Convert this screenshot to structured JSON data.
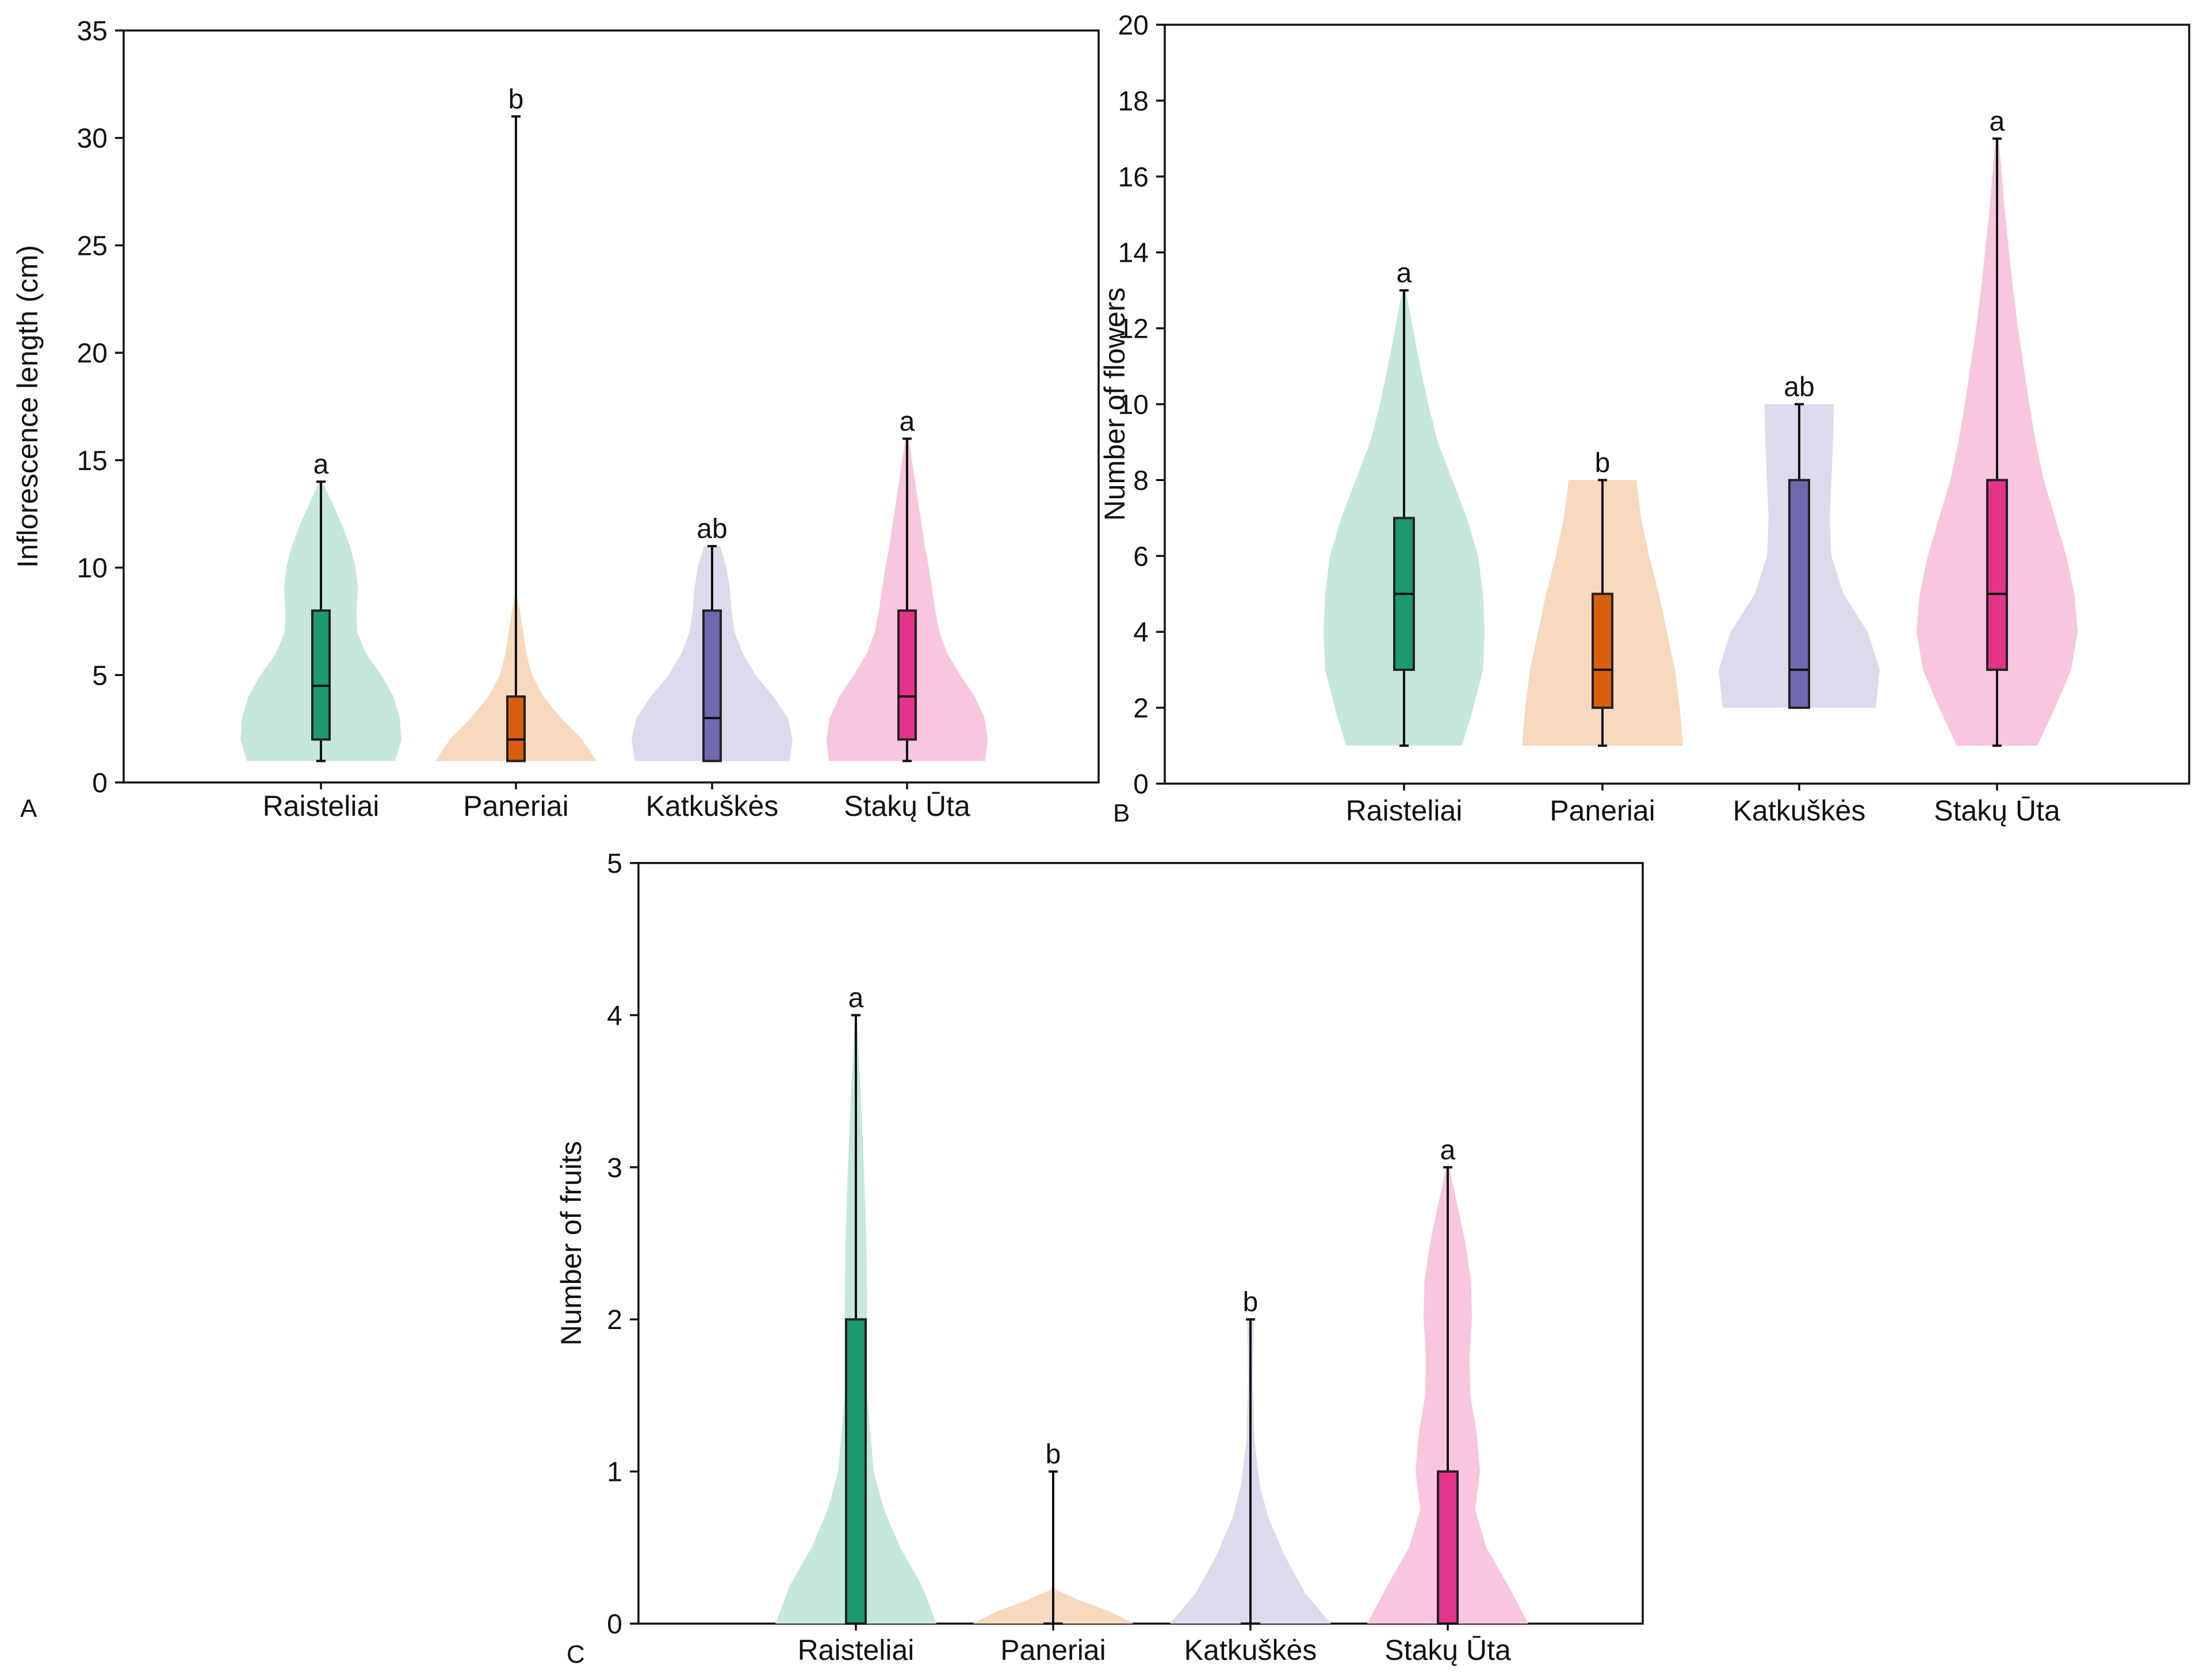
{
  "figure": {
    "categories": [
      "Raisteliai",
      "Paneriai",
      "Katkuškės",
      "Stakų Ūta"
    ],
    "colors": {
      "box": [
        "#1b9a72",
        "#d85f10",
        "#6f6ab0",
        "#e3348a"
      ],
      "violin": [
        "#c6e8db",
        "#f6d9bf",
        "#dcdaec",
        "#f8c6de"
      ]
    }
  },
  "chart_data": [
    {
      "panel": "A",
      "type": "violin",
      "ylabel": "Inflorescence length (cm)",
      "ylim": [
        0,
        35
      ],
      "yticks": [
        0,
        5,
        10,
        15,
        20,
        25,
        30,
        35
      ],
      "series": [
        {
          "name": "Raisteliai",
          "min": 1,
          "q1": 2,
          "median": 4.5,
          "q3": 8,
          "max": 14,
          "letter": "a",
          "density": [
            [
              1,
              0.92
            ],
            [
              2,
              1.0
            ],
            [
              3,
              0.98
            ],
            [
              4,
              0.9
            ],
            [
              5,
              0.75
            ],
            [
              6,
              0.56
            ],
            [
              7,
              0.45
            ],
            [
              8,
              0.44
            ],
            [
              9,
              0.46
            ],
            [
              10,
              0.43
            ],
            [
              11,
              0.36
            ],
            [
              12,
              0.26
            ],
            [
              13,
              0.14
            ],
            [
              14,
              0.02
            ]
          ]
        },
        {
          "name": "Paneriai",
          "min": 1,
          "q1": 1,
          "median": 2,
          "q3": 4,
          "max": 31,
          "letter": "b",
          "density": [
            [
              1,
              1.0
            ],
            [
              2,
              0.82
            ],
            [
              3,
              0.56
            ],
            [
              4,
              0.34
            ],
            [
              5,
              0.2
            ],
            [
              6,
              0.13
            ],
            [
              7,
              0.09
            ],
            [
              8,
              0.05
            ],
            [
              9,
              0.0
            ]
          ]
        },
        {
          "name": "Katkuškės",
          "min": 1,
          "q1": 1,
          "median": 3,
          "q3": 8,
          "max": 11,
          "letter": "ab",
          "density": [
            [
              1,
              0.96
            ],
            [
              2,
              1.0
            ],
            [
              3,
              0.94
            ],
            [
              4,
              0.76
            ],
            [
              5,
              0.54
            ],
            [
              6,
              0.38
            ],
            [
              7,
              0.28
            ],
            [
              8,
              0.24
            ],
            [
              9,
              0.22
            ],
            [
              10,
              0.18
            ],
            [
              11,
              0.1
            ]
          ]
        },
        {
          "name": "Stakų Ūta",
          "min": 1,
          "q1": 2,
          "median": 4,
          "q3": 8,
          "max": 16,
          "letter": "a",
          "density": [
            [
              1,
              0.97
            ],
            [
              2,
              1.0
            ],
            [
              3,
              0.96
            ],
            [
              4,
              0.84
            ],
            [
              5,
              0.66
            ],
            [
              6,
              0.5
            ],
            [
              7,
              0.4
            ],
            [
              8,
              0.35
            ],
            [
              9,
              0.31
            ],
            [
              10,
              0.27
            ],
            [
              11,
              0.22
            ],
            [
              12,
              0.18
            ],
            [
              13,
              0.14
            ],
            [
              14,
              0.1
            ],
            [
              15,
              0.06
            ],
            [
              16,
              0.02
            ]
          ]
        }
      ]
    },
    {
      "panel": "B",
      "type": "violin",
      "ylabel": "Number of flowers",
      "ylim": [
        0,
        20
      ],
      "yticks": [
        0,
        2,
        4,
        6,
        8,
        10,
        12,
        14,
        16,
        18,
        20
      ],
      "series": [
        {
          "name": "Raisteliai",
          "min": 1,
          "q1": 3,
          "median": 5,
          "q3": 7,
          "max": 13,
          "letter": "a",
          "density": [
            [
              1,
              0.72
            ],
            [
              2,
              0.86
            ],
            [
              3,
              0.98
            ],
            [
              4,
              1.0
            ],
            [
              5,
              0.98
            ],
            [
              6,
              0.92
            ],
            [
              7,
              0.78
            ],
            [
              8,
              0.6
            ],
            [
              9,
              0.42
            ],
            [
              10,
              0.3
            ],
            [
              11,
              0.2
            ],
            [
              12,
              0.11
            ],
            [
              13,
              0.02
            ]
          ]
        },
        {
          "name": "Paneriai",
          "min": 1,
          "q1": 2,
          "median": 3,
          "q3": 5,
          "max": 8,
          "letter": "b",
          "density": [
            [
              1,
              1.0
            ],
            [
              2,
              0.96
            ],
            [
              3,
              0.9
            ],
            [
              4,
              0.8
            ],
            [
              5,
              0.7
            ],
            [
              6,
              0.58
            ],
            [
              7,
              0.48
            ],
            [
              8,
              0.42
            ]
          ]
        },
        {
          "name": "Katkuškės",
          "min": 2,
          "q1": 2,
          "median": 3,
          "q3": 8,
          "max": 10,
          "letter": "ab",
          "density": [
            [
              2,
              0.95
            ],
            [
              3,
              1.0
            ],
            [
              4,
              0.85
            ],
            [
              5,
              0.55
            ],
            [
              6,
              0.4
            ],
            [
              7,
              0.38
            ],
            [
              8,
              0.4
            ],
            [
              9,
              0.42
            ],
            [
              10,
              0.43
            ]
          ]
        },
        {
          "name": "Stakų Ūta",
          "min": 1,
          "q1": 3,
          "median": 5,
          "q3": 8,
          "max": 17,
          "letter": "a",
          "density": [
            [
              1,
              0.5
            ],
            [
              2,
              0.72
            ],
            [
              3,
              0.92
            ],
            [
              4,
              1.0
            ],
            [
              5,
              0.96
            ],
            [
              6,
              0.86
            ],
            [
              7,
              0.72
            ],
            [
              8,
              0.58
            ],
            [
              9,
              0.48
            ],
            [
              10,
              0.4
            ],
            [
              11,
              0.33
            ],
            [
              12,
              0.26
            ],
            [
              13,
              0.2
            ],
            [
              14,
              0.15
            ],
            [
              15,
              0.1
            ],
            [
              16,
              0.06
            ],
            [
              17,
              0.02
            ]
          ]
        }
      ]
    },
    {
      "panel": "C",
      "type": "violin",
      "ylabel": "Number of fruits",
      "ylim": [
        0,
        5
      ],
      "yticks": [
        0,
        1,
        2,
        3,
        4,
        5
      ],
      "series": [
        {
          "name": "Raisteliai",
          "min": 0,
          "q1": 0,
          "median": 0,
          "q3": 2,
          "max": 4,
          "letter": "a",
          "density": [
            [
              0,
              1.0
            ],
            [
              0.25,
              0.82
            ],
            [
              0.5,
              0.55
            ],
            [
              0.75,
              0.35
            ],
            [
              1.0,
              0.22
            ],
            [
              1.5,
              0.14
            ],
            [
              2.0,
              0.14
            ],
            [
              2.5,
              0.13
            ],
            [
              3.0,
              0.1
            ],
            [
              3.5,
              0.06
            ],
            [
              4.0,
              0.01
            ]
          ]
        },
        {
          "name": "Paneriai",
          "min": 0,
          "q1": 0,
          "median": 0,
          "q3": 0,
          "max": 1,
          "letter": "b",
          "density": [
            [
              0,
              1.0
            ],
            [
              0.08,
              0.7
            ],
            [
              0.16,
              0.3
            ],
            [
              0.22,
              0.04
            ],
            [
              0.25,
              0.0
            ]
          ]
        },
        {
          "name": "Katkuškės",
          "min": 0,
          "q1": 0,
          "median": 0,
          "q3": 0,
          "max": 2,
          "letter": "b",
          "density": [
            [
              0,
              1.0
            ],
            [
              0.2,
              0.68
            ],
            [
              0.45,
              0.42
            ],
            [
              0.7,
              0.22
            ],
            [
              0.9,
              0.12
            ],
            [
              1.2,
              0.05
            ],
            [
              1.6,
              0.03
            ],
            [
              2.0,
              0.04
            ]
          ]
        },
        {
          "name": "Stakų Ūta",
          "min": 0,
          "q1": 0,
          "median": 0,
          "q3": 1,
          "max": 3,
          "letter": "a",
          "density": [
            [
              0,
              1.0
            ],
            [
              0.25,
              0.75
            ],
            [
              0.5,
              0.48
            ],
            [
              0.75,
              0.34
            ],
            [
              1.0,
              0.4
            ],
            [
              1.25,
              0.36
            ],
            [
              1.5,
              0.28
            ],
            [
              1.75,
              0.27
            ],
            [
              2.0,
              0.3
            ],
            [
              2.25,
              0.29
            ],
            [
              2.5,
              0.22
            ],
            [
              2.75,
              0.12
            ],
            [
              3.0,
              0.02
            ]
          ]
        }
      ]
    }
  ]
}
